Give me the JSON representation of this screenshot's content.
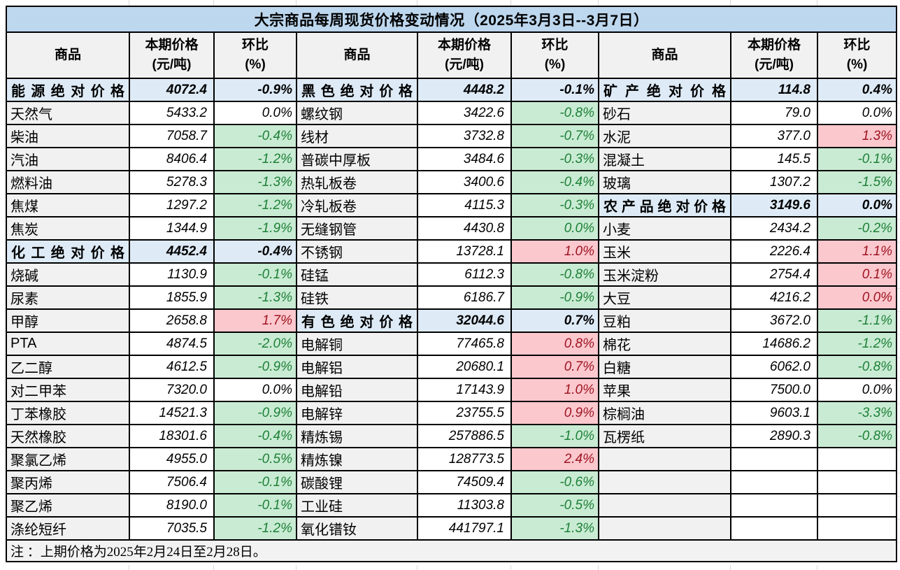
{
  "title": "大宗商品每周现货价格变动情况（2025年3月3日--3月7日）",
  "note": "注 ：上期价格为2025年2月24日至2月28日。",
  "column_headers": {
    "commodity": "商品",
    "price": "本期价格",
    "price_unit": "(元/吨)",
    "pct": "环比",
    "pct_unit": "(%)"
  },
  "colors": {
    "title_bg": "#BDD7EE",
    "section_bg": "#DEEBF7",
    "header_bg": "#F1F1F1",
    "name_bg": "#F1F1F1",
    "up_bg": "#FBC8CE",
    "up_text": "#9E1420",
    "down_bg": "#C9EBD3",
    "down_text": "#1E8038",
    "border": "#000000",
    "note_bg": "#F2F2F2",
    "grid_hint": "#D9D9D9"
  },
  "groups": [
    [
      {
        "name": "能源绝对价格",
        "price": "4072.4",
        "pct": "-0.9%",
        "style": "section"
      },
      {
        "name": "天然气",
        "price": "5433.2",
        "pct": "0.0%",
        "style": "flat"
      },
      {
        "name": "柴油",
        "price": "7058.7",
        "pct": "-0.4%",
        "style": "down"
      },
      {
        "name": "汽油",
        "price": "8406.4",
        "pct": "-1.2%",
        "style": "down"
      },
      {
        "name": "燃料油",
        "price": "5278.3",
        "pct": "-1.3%",
        "style": "down"
      },
      {
        "name": "焦煤",
        "price": "1297.2",
        "pct": "-1.2%",
        "style": "down"
      },
      {
        "name": "焦炭",
        "price": "1344.9",
        "pct": "-1.9%",
        "style": "down"
      },
      {
        "name": "化工绝对价格",
        "price": "4452.4",
        "pct": "-0.4%",
        "style": "section"
      },
      {
        "name": "烧碱",
        "price": "1130.9",
        "pct": "-0.1%",
        "style": "down"
      },
      {
        "name": "尿素",
        "price": "1855.9",
        "pct": "-1.3%",
        "style": "down"
      },
      {
        "name": "甲醇",
        "price": "2658.8",
        "pct": "1.7%",
        "style": "up"
      },
      {
        "name": "PTA",
        "price": "4874.5",
        "pct": "-2.0%",
        "style": "down"
      },
      {
        "name": "乙二醇",
        "price": "4612.5",
        "pct": "-0.9%",
        "style": "down"
      },
      {
        "name": "对二甲苯",
        "price": "7320.0",
        "pct": "0.0%",
        "style": "flat"
      },
      {
        "name": "丁苯橡胶",
        "price": "14521.3",
        "pct": "-0.9%",
        "style": "down"
      },
      {
        "name": "天然橡胶",
        "price": "18301.6",
        "pct": "-0.4%",
        "style": "down"
      },
      {
        "name": "聚氯乙烯",
        "price": "4955.0",
        "pct": "-0.5%",
        "style": "down"
      },
      {
        "name": "聚丙烯",
        "price": "7506.4",
        "pct": "-0.1%",
        "style": "down"
      },
      {
        "name": "聚乙烯",
        "price": "8190.0",
        "pct": "-0.1%",
        "style": "down"
      },
      {
        "name": "涤纶短纤",
        "price": "7035.5",
        "pct": "-1.2%",
        "style": "down"
      }
    ],
    [
      {
        "name": "黑色绝对价格",
        "price": "4448.2",
        "pct": "-0.1%",
        "style": "section"
      },
      {
        "name": "螺纹钢",
        "price": "3422.6",
        "pct": "-0.8%",
        "style": "down"
      },
      {
        "name": "线材",
        "price": "3732.8",
        "pct": "-0.7%",
        "style": "down"
      },
      {
        "name": "普碳中厚板",
        "price": "3484.6",
        "pct": "-0.3%",
        "style": "down"
      },
      {
        "name": "热轧板卷",
        "price": "3400.6",
        "pct": "-0.4%",
        "style": "down"
      },
      {
        "name": "冷轧板卷",
        "price": "4115.3",
        "pct": "-0.3%",
        "style": "down"
      },
      {
        "name": "无缝钢管",
        "price": "4430.8",
        "pct": "0.0%",
        "style": "down"
      },
      {
        "name": "不锈钢",
        "price": "13728.1",
        "pct": "1.0%",
        "style": "up"
      },
      {
        "name": "硅锰",
        "price": "6112.3",
        "pct": "-0.8%",
        "style": "down"
      },
      {
        "name": "硅铁",
        "price": "6186.7",
        "pct": "-0.9%",
        "style": "down"
      },
      {
        "name": "有色绝对价格",
        "price": "32044.6",
        "pct": "0.7%",
        "style": "section"
      },
      {
        "name": "电解铜",
        "price": "77465.8",
        "pct": "0.8%",
        "style": "up"
      },
      {
        "name": "电解铝",
        "price": "20680.1",
        "pct": "0.7%",
        "style": "up"
      },
      {
        "name": "电解铅",
        "price": "17143.9",
        "pct": "1.0%",
        "style": "up"
      },
      {
        "name": "电解锌",
        "price": "23755.5",
        "pct": "0.9%",
        "style": "up"
      },
      {
        "name": "精炼锡",
        "price": "257886.5",
        "pct": "-1.0%",
        "style": "down"
      },
      {
        "name": "精炼镍",
        "price": "128773.5",
        "pct": "2.4%",
        "style": "up"
      },
      {
        "name": "碳酸锂",
        "price": "74509.4",
        "pct": "-0.6%",
        "style": "down"
      },
      {
        "name": "工业硅",
        "price": "11303.8",
        "pct": "-0.5%",
        "style": "down"
      },
      {
        "name": "氧化镨钕",
        "price": "441797.1",
        "pct": "-1.3%",
        "style": "down"
      }
    ],
    [
      {
        "name": "矿产绝对价格",
        "price": "114.8",
        "pct": "0.4%",
        "style": "section"
      },
      {
        "name": "砂石",
        "price": "79.0",
        "pct": "0.0%",
        "style": "flat"
      },
      {
        "name": "水泥",
        "price": "377.0",
        "pct": "1.3%",
        "style": "up"
      },
      {
        "name": "混凝土",
        "price": "145.5",
        "pct": "-0.1%",
        "style": "down"
      },
      {
        "name": "玻璃",
        "price": "1307.2",
        "pct": "-1.5%",
        "style": "down"
      },
      {
        "name": "农产品绝对价格",
        "price": "3149.6",
        "pct": "0.0%",
        "style": "section"
      },
      {
        "name": "小麦",
        "price": "2434.2",
        "pct": "-0.2%",
        "style": "down"
      },
      {
        "name": "玉米",
        "price": "2226.4",
        "pct": "1.1%",
        "style": "up"
      },
      {
        "name": "玉米淀粉",
        "price": "2754.4",
        "pct": "0.1%",
        "style": "up"
      },
      {
        "name": "大豆",
        "price": "4216.2",
        "pct": "0.0%",
        "style": "up"
      },
      {
        "name": "豆粕",
        "price": "3672.0",
        "pct": "-1.1%",
        "style": "down"
      },
      {
        "name": "棉花",
        "price": "14686.2",
        "pct": "-1.2%",
        "style": "down"
      },
      {
        "name": "白糖",
        "price": "6062.0",
        "pct": "-0.8%",
        "style": "down"
      },
      {
        "name": "苹果",
        "price": "7500.0",
        "pct": "0.0%",
        "style": "flat"
      },
      {
        "name": "棕榈油",
        "price": "9603.1",
        "pct": "-3.3%",
        "style": "down"
      },
      {
        "name": "瓦楞纸",
        "price": "2890.3",
        "pct": "-0.8%",
        "style": "down"
      },
      {
        "name": "",
        "price": "",
        "pct": "",
        "style": "empty"
      },
      {
        "name": "",
        "price": "",
        "pct": "",
        "style": "empty"
      },
      {
        "name": "",
        "price": "",
        "pct": "",
        "style": "empty"
      },
      {
        "name": "",
        "price": "",
        "pct": "",
        "style": "empty"
      }
    ]
  ]
}
